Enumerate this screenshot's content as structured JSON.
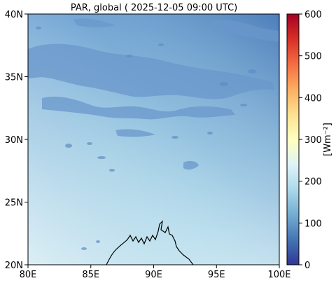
{
  "map": {
    "title": "PAR, global ( 2025-12-05 09:00 UTC)",
    "lon_range": [
      80,
      100
    ],
    "lat_range": [
      20,
      40
    ],
    "x_ticks": [
      {
        "value": 80,
        "label": "80E"
      },
      {
        "value": 85,
        "label": "85E"
      },
      {
        "value": 90,
        "label": "90E"
      },
      {
        "value": 95,
        "label": "95E"
      },
      {
        "value": 100,
        "label": "100E"
      }
    ],
    "y_ticks": [
      {
        "value": 20,
        "label": "20N"
      },
      {
        "value": 25,
        "label": "25N"
      },
      {
        "value": 30,
        "label": "30N"
      },
      {
        "value": 35,
        "label": "35N"
      },
      {
        "value": 40,
        "label": "40N"
      }
    ]
  },
  "colorbar": {
    "label": "[Wm⁻²]",
    "range": [
      0,
      600
    ],
    "colormap": "RdYlBu_r",
    "ticks": [
      {
        "value": 0,
        "label": "0"
      },
      {
        "value": 100,
        "label": "100"
      },
      {
        "value": 200,
        "label": "200"
      },
      {
        "value": 300,
        "label": "300"
      },
      {
        "value": 400,
        "label": "400"
      },
      {
        "value": 500,
        "label": "500"
      },
      {
        "value": 600,
        "label": "600"
      }
    ],
    "stops": [
      "#313695",
      "#4575b4",
      "#74add1",
      "#abd9e9",
      "#e0f3f8",
      "#ffffbf",
      "#fee090",
      "#fdae61",
      "#f46d43",
      "#d73027",
      "#a50026"
    ]
  },
  "colors": {
    "field_low": "#3f70b2",
    "field_high": "#d5ebf4",
    "cloud": "#5e8dc5",
    "coastline": "#000000"
  }
}
